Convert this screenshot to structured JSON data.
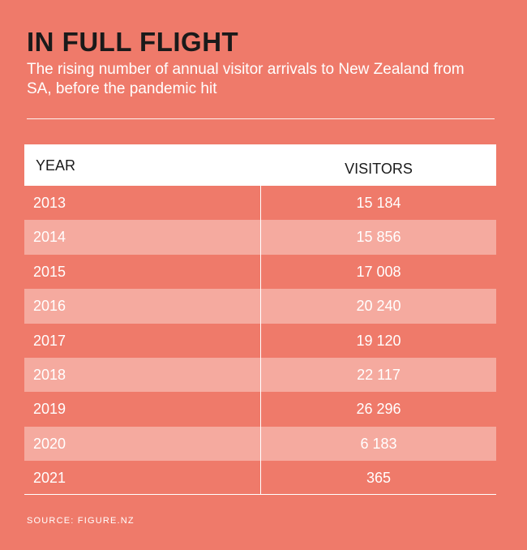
{
  "header": {
    "title": "IN FULL FLIGHT",
    "subtitle": "The rising number of annual visitor arrivals to New Zealand from SA, before the pandemic hit"
  },
  "table": {
    "columns": [
      "YEAR",
      "VISITORS"
    ]
  },
  "chart_data": {
    "type": "table",
    "title": "IN FULL FLIGHT",
    "subtitle": "The rising number of annual visitor arrivals to New Zealand from SA, before the pandemic hit",
    "columns": [
      "YEAR",
      "VISITORS"
    ],
    "rows": [
      {
        "year": "2013",
        "visitors": "15 184"
      },
      {
        "year": "2014",
        "visitors": "15 856"
      },
      {
        "year": "2015",
        "visitors": "17 008"
      },
      {
        "year": "2016",
        "visitors": "20 240"
      },
      {
        "year": "2017",
        "visitors": "19 120"
      },
      {
        "year": "2018",
        "visitors": "22 117"
      },
      {
        "year": "2019",
        "visitors": "26 296"
      },
      {
        "year": "2020",
        "visitors": "6 183"
      },
      {
        "year": "2021",
        "visitors": "365"
      }
    ]
  },
  "footer": {
    "source": "SOURCE: FIGURE.NZ"
  },
  "colors": {
    "background": "#ef7a6a",
    "shaded_row": "#f5aa9f",
    "header_bg": "#ffffff",
    "title_text": "#1a1a1a",
    "body_text": "#ffffff"
  }
}
